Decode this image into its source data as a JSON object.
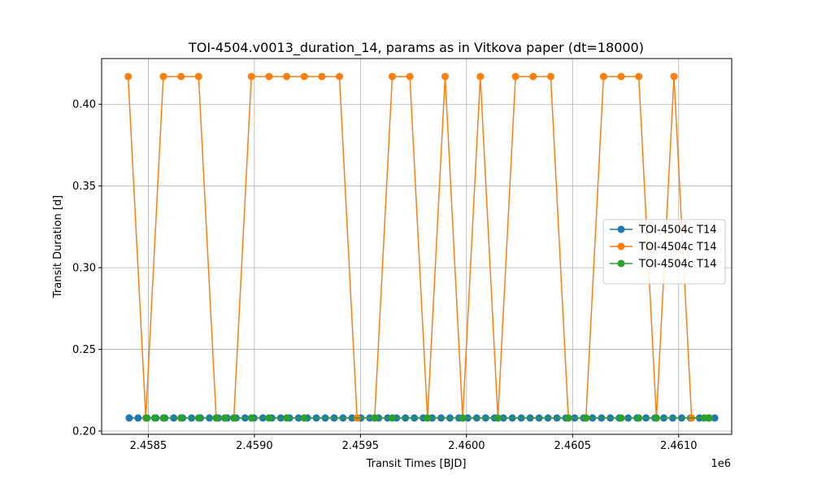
{
  "chart_data": {
    "type": "line",
    "title": "TOI-4504.v0013_duration_14, params as in Vitkova paper (dt=18000)",
    "xlabel": "Transit Times [BJD]",
    "ylabel": "Transit Duration [d]",
    "x_offset_label": "1e6",
    "xlim": [
      2458280,
      2461250
    ],
    "ylim": [
      0.198,
      0.428
    ],
    "xticks": [
      2458500,
      2459000,
      2459500,
      2460000,
      2460500,
      2461000
    ],
    "xtick_labels": [
      "2.4585",
      "2.4590",
      "2.4595",
      "2.4600",
      "2.4605",
      "2.4610"
    ],
    "yticks": [
      0.2,
      0.25,
      0.3,
      0.35,
      0.4
    ],
    "ytick_labels": [
      "0.20",
      "0.25",
      "0.30",
      "0.35",
      "0.40"
    ],
    "grid": true,
    "legend_position": "center-right",
    "series": [
      {
        "name": "TOI-4504c T14",
        "color": "#1f77b4",
        "x": [
          2458410,
          2458452,
          2458494,
          2458536,
          2458578,
          2458620,
          2458662,
          2458704,
          2458746,
          2458788,
          2458830,
          2458872,
          2458914,
          2458956,
          2458998,
          2459040,
          2459082,
          2459124,
          2459166,
          2459208,
          2459250,
          2459292,
          2459334,
          2459376,
          2459418,
          2459460,
          2459502,
          2459544,
          2459586,
          2459628,
          2459670,
          2459712,
          2459754,
          2459796,
          2459838,
          2459880,
          2459922,
          2459964,
          2460006,
          2460048,
          2460090,
          2460132,
          2460174,
          2460216,
          2460258,
          2460300,
          2460342,
          2460384,
          2460426,
          2460468,
          2460510,
          2460552,
          2460594,
          2460636,
          2460678,
          2460720,
          2460762,
          2460804,
          2460846,
          2460888,
          2460930,
          2460972,
          2461014,
          2461056,
          2461098,
          2461140,
          2461170
        ],
        "y": [
          0.208,
          0.208,
          0.208,
          0.208,
          0.208,
          0.208,
          0.208,
          0.208,
          0.208,
          0.208,
          0.208,
          0.208,
          0.208,
          0.208,
          0.208,
          0.208,
          0.208,
          0.208,
          0.208,
          0.208,
          0.208,
          0.208,
          0.208,
          0.208,
          0.208,
          0.208,
          0.208,
          0.208,
          0.208,
          0.208,
          0.208,
          0.208,
          0.208,
          0.208,
          0.208,
          0.208,
          0.208,
          0.208,
          0.208,
          0.208,
          0.208,
          0.208,
          0.208,
          0.208,
          0.208,
          0.208,
          0.208,
          0.208,
          0.208,
          0.208,
          0.208,
          0.208,
          0.208,
          0.208,
          0.208,
          0.208,
          0.208,
          0.208,
          0.208,
          0.208,
          0.208,
          0.208,
          0.208,
          0.208,
          0.208,
          0.208,
          0.208
        ]
      },
      {
        "name": "TOI-4504c T14",
        "color": "#ff7f0e",
        "x": [
          2458405,
          2458488,
          2458571,
          2458654,
          2458737,
          2458820,
          2458903,
          2458986,
          2459069,
          2459152,
          2459235,
          2459318,
          2459401,
          2459484,
          2459567,
          2459650,
          2459733,
          2459816,
          2459899,
          2459982,
          2460065,
          2460148,
          2460231,
          2460314,
          2460397,
          2460480,
          2460563,
          2460646,
          2460729,
          2460812,
          2460895,
          2460978,
          2461061,
          2461144
        ],
        "y": [
          0.417,
          0.208,
          0.417,
          0.417,
          0.417,
          0.208,
          0.208,
          0.417,
          0.417,
          0.417,
          0.417,
          0.417,
          0.417,
          0.208,
          0.208,
          0.417,
          0.417,
          0.208,
          0.417,
          0.208,
          0.417,
          0.208,
          0.417,
          0.417,
          0.417,
          0.208,
          0.208,
          0.417,
          0.417,
          0.417,
          0.208,
          0.417,
          0.208,
          0.208
        ]
      },
      {
        "name": "TOI-4504c T14",
        "color": "#2ca02c",
        "x": [
          2458492,
          2458530,
          2458571,
          2458654,
          2458737,
          2458820,
          2458860,
          2458903,
          2458986,
          2459069,
          2459152,
          2459235,
          2459567,
          2459650,
          2459816,
          2459982,
          2460148,
          2460480,
          2460563,
          2460729,
          2460812,
          2460895,
          2461120,
          2461144
        ],
        "y": [
          0.208,
          0.208,
          0.208,
          0.208,
          0.208,
          0.208,
          0.208,
          0.208,
          0.208,
          0.208,
          0.208,
          0.208,
          0.208,
          0.208,
          0.208,
          0.208,
          0.208,
          0.208,
          0.208,
          0.208,
          0.208,
          0.208,
          0.208,
          0.208
        ]
      }
    ]
  }
}
